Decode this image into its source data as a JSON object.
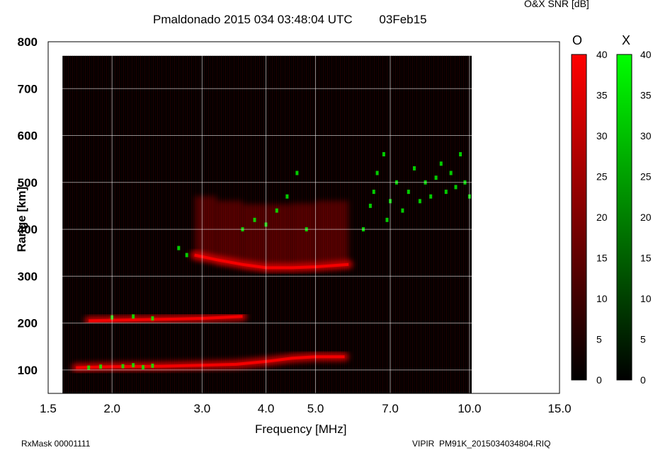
{
  "header": {
    "title": "Pmaldonado 2015 034 03:48:04 UTC        03Feb15",
    "snr_label": "O&X SNR [dB]"
  },
  "footer": {
    "left": "RxMask 00001111",
    "right": "VIPIR  PM91K_2015034034804.RIQ"
  },
  "colorbars": {
    "o_label": "O",
    "x_label": "X",
    "ticks": [
      "40",
      "35",
      "30",
      "25",
      "20",
      "15",
      "10",
      "5",
      "0"
    ],
    "o_color": "#ff0000",
    "x_color": "#00ff00"
  },
  "chart_data": {
    "type": "heatmap",
    "title": "Pmaldonado 2015 034 03:48:04 UTC        03Feb15",
    "xlabel": "Frequency [MHz]",
    "ylabel": "Range [km]",
    "xscale": "log",
    "xlim": [
      1.5,
      15.0
    ],
    "ylim": [
      50,
      800
    ],
    "xticks": [
      1.5,
      2.0,
      3.0,
      4.0,
      5.0,
      7.0,
      10.0,
      15.0
    ],
    "xtick_labels": [
      "1.5",
      "2.0",
      "3.0",
      "4.0",
      "5.0",
      "7.0",
      "10.0",
      "15.0"
    ],
    "yticks": [
      100,
      200,
      300,
      400,
      500,
      600,
      700,
      800
    ],
    "ytick_labels": [
      "100",
      "200",
      "300",
      "400",
      "500",
      "600",
      "700",
      "800"
    ],
    "grid": true,
    "data_extent": {
      "freq_mhz": [
        1.6,
        10.1
      ],
      "range_km": [
        50,
        770
      ]
    },
    "series": [
      {
        "name": "O",
        "color": "#ff0000",
        "traces": [
          {
            "x": [
              1.7,
              2.0,
              2.5,
              3.0,
              3.5,
              4.0,
              4.5,
              5.0,
              5.7
            ],
            "y": [
              105,
              107,
              108,
              110,
              112,
              118,
              125,
              128,
              128
            ]
          },
          {
            "x": [
              1.8,
              2.0,
              2.5,
              3.0,
              3.3,
              3.6
            ],
            "y": [
              205,
              206,
              208,
              210,
              212,
              214
            ]
          },
          {
            "x": [
              2.9,
              3.2,
              3.6,
              4.0,
              4.5,
              5.0,
              5.8
            ],
            "y": [
              345,
              335,
              325,
              318,
              318,
              320,
              325
            ]
          }
        ]
      },
      {
        "name": "X",
        "color": "#00ff00",
        "points": [
          {
            "x": 1.8,
            "y": 105
          },
          {
            "x": 1.9,
            "y": 107
          },
          {
            "x": 2.1,
            "y": 108
          },
          {
            "x": 2.2,
            "y": 110
          },
          {
            "x": 2.3,
            "y": 106
          },
          {
            "x": 2.4,
            "y": 109
          },
          {
            "x": 2.0,
            "y": 212
          },
          {
            "x": 2.2,
            "y": 214
          },
          {
            "x": 2.4,
            "y": 210
          },
          {
            "x": 2.7,
            "y": 360
          },
          {
            "x": 2.8,
            "y": 345
          },
          {
            "x": 3.6,
            "y": 400
          },
          {
            "x": 3.8,
            "y": 420
          },
          {
            "x": 4.0,
            "y": 410
          },
          {
            "x": 4.2,
            "y": 440
          },
          {
            "x": 4.4,
            "y": 470
          },
          {
            "x": 4.6,
            "y": 520
          },
          {
            "x": 4.8,
            "y": 400
          },
          {
            "x": 6.2,
            "y": 400
          },
          {
            "x": 6.4,
            "y": 450
          },
          {
            "x": 6.5,
            "y": 480
          },
          {
            "x": 6.6,
            "y": 520
          },
          {
            "x": 6.8,
            "y": 560
          },
          {
            "x": 6.9,
            "y": 420
          },
          {
            "x": 7.0,
            "y": 460
          },
          {
            "x": 7.2,
            "y": 500
          },
          {
            "x": 7.4,
            "y": 440
          },
          {
            "x": 7.6,
            "y": 480
          },
          {
            "x": 7.8,
            "y": 530
          },
          {
            "x": 8.0,
            "y": 460
          },
          {
            "x": 8.2,
            "y": 500
          },
          {
            "x": 8.4,
            "y": 470
          },
          {
            "x": 8.6,
            "y": 510
          },
          {
            "x": 8.8,
            "y": 540
          },
          {
            "x": 9.0,
            "y": 480
          },
          {
            "x": 9.2,
            "y": 520
          },
          {
            "x": 9.4,
            "y": 490
          },
          {
            "x": 9.6,
            "y": 560
          },
          {
            "x": 9.8,
            "y": 500
          },
          {
            "x": 10.0,
            "y": 470
          }
        ]
      }
    ]
  }
}
